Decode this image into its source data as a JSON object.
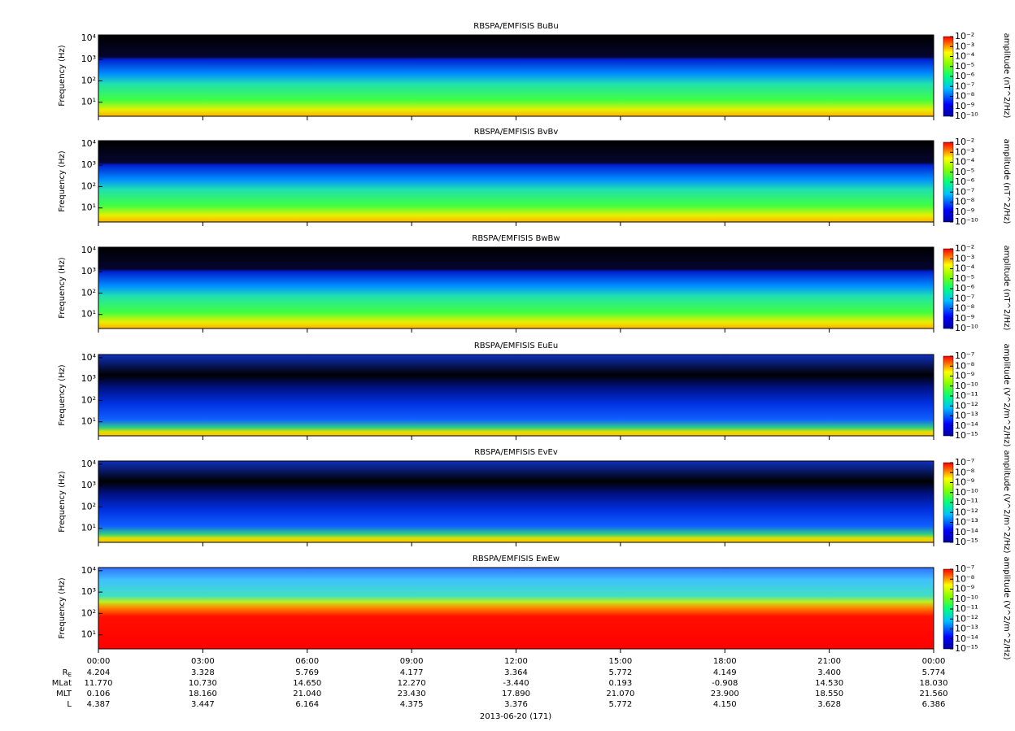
{
  "chart_data": [
    {
      "type": "spectrogram",
      "title": "RBSPA/EMFISIS  BuBu",
      "ylabel": "Frequency (Hz)",
      "ylog": true,
      "ylim": [
        2.2,
        14000
      ],
      "yticks": [
        {
          "value": 10,
          "label": "10¹"
        },
        {
          "value": 100,
          "label": "10²"
        },
        {
          "value": 1000,
          "label": "10³"
        },
        {
          "value": 10000,
          "label": "10⁴"
        }
      ],
      "zlabel": "amplitude (nT^2/Hz)",
      "zlim": [
        1e-10,
        0.01
      ],
      "zticks": [
        {
          "value": 0.01,
          "label": "10⁻²"
        },
        {
          "value": 0.001,
          "label": "10⁻³"
        },
        {
          "value": 0.0001,
          "label": "10⁻⁴"
        },
        {
          "value": 1e-05,
          "label": "10⁻⁵"
        },
        {
          "value": 1e-06,
          "label": "10⁻⁶"
        },
        {
          "value": 1e-07,
          "label": "10⁻⁷"
        },
        {
          "value": 1e-08,
          "label": "10⁻⁸"
        },
        {
          "value": 1e-09,
          "label": "10⁻⁹"
        },
        {
          "value": 1e-10,
          "label": "10⁻¹⁰"
        }
      ]
    },
    {
      "type": "spectrogram",
      "title": "RBSPA/EMFISIS  BvBv",
      "ylabel": "Frequency (Hz)",
      "ylog": true,
      "ylim": [
        2.2,
        14000
      ],
      "yticks": [
        {
          "value": 10,
          "label": "10¹"
        },
        {
          "value": 100,
          "label": "10²"
        },
        {
          "value": 1000,
          "label": "10³"
        },
        {
          "value": 10000,
          "label": "10⁴"
        }
      ],
      "zlabel": "amplitude (nT^2/Hz)",
      "zlim": [
        1e-10,
        0.01
      ],
      "zticks": [
        {
          "value": 0.01,
          "label": "10⁻²"
        },
        {
          "value": 0.001,
          "label": "10⁻³"
        },
        {
          "value": 0.0001,
          "label": "10⁻⁴"
        },
        {
          "value": 1e-05,
          "label": "10⁻⁵"
        },
        {
          "value": 1e-06,
          "label": "10⁻⁶"
        },
        {
          "value": 1e-07,
          "label": "10⁻⁷"
        },
        {
          "value": 1e-08,
          "label": "10⁻⁸"
        },
        {
          "value": 1e-09,
          "label": "10⁻⁹"
        },
        {
          "value": 1e-10,
          "label": "10⁻¹⁰"
        }
      ]
    },
    {
      "type": "spectrogram",
      "title": "RBSPA/EMFISIS  BwBw",
      "ylabel": "Frequency (Hz)",
      "ylog": true,
      "ylim": [
        2.2,
        14000
      ],
      "yticks": [
        {
          "value": 10,
          "label": "10¹"
        },
        {
          "value": 100,
          "label": "10²"
        },
        {
          "value": 1000,
          "label": "10³"
        },
        {
          "value": 10000,
          "label": "10⁴"
        }
      ],
      "zlabel": "amplitude (nT^2/Hz)",
      "zlim": [
        1e-10,
        0.01
      ],
      "zticks": [
        {
          "value": 0.01,
          "label": "10⁻²"
        },
        {
          "value": 0.001,
          "label": "10⁻³"
        },
        {
          "value": 0.0001,
          "label": "10⁻⁴"
        },
        {
          "value": 1e-05,
          "label": "10⁻⁵"
        },
        {
          "value": 1e-06,
          "label": "10⁻⁶"
        },
        {
          "value": 1e-07,
          "label": "10⁻⁷"
        },
        {
          "value": 1e-08,
          "label": "10⁻⁸"
        },
        {
          "value": 1e-09,
          "label": "10⁻⁹"
        },
        {
          "value": 1e-10,
          "label": "10⁻¹⁰"
        }
      ]
    },
    {
      "type": "spectrogram",
      "title": "RBSPA/EMFISIS  EuEu",
      "ylabel": "Frequency (Hz)",
      "ylog": true,
      "ylim": [
        2.2,
        14000
      ],
      "yticks": [
        {
          "value": 10,
          "label": "10¹"
        },
        {
          "value": 100,
          "label": "10²"
        },
        {
          "value": 1000,
          "label": "10³"
        },
        {
          "value": 10000,
          "label": "10⁴"
        }
      ],
      "zlabel": "amplitude (V^2/m^2/Hz)",
      "zlim": [
        1e-15,
        1e-07
      ],
      "zticks": [
        {
          "value": 1e-07,
          "label": "10⁻⁷"
        },
        {
          "value": 1e-08,
          "label": "10⁻⁸"
        },
        {
          "value": 1e-09,
          "label": "10⁻⁹"
        },
        {
          "value": 1e-10,
          "label": "10⁻¹⁰"
        },
        {
          "value": 1e-11,
          "label": "10⁻¹¹"
        },
        {
          "value": 1e-12,
          "label": "10⁻¹²"
        },
        {
          "value": 1e-13,
          "label": "10⁻¹³"
        },
        {
          "value": 1e-14,
          "label": "10⁻¹⁴"
        },
        {
          "value": 1e-15,
          "label": "10⁻¹⁵"
        }
      ]
    },
    {
      "type": "spectrogram",
      "title": "RBSPA/EMFISIS  EvEv",
      "ylabel": "Frequency (Hz)",
      "ylog": true,
      "ylim": [
        2.2,
        14000
      ],
      "yticks": [
        {
          "value": 10,
          "label": "10¹"
        },
        {
          "value": 100,
          "label": "10²"
        },
        {
          "value": 1000,
          "label": "10³"
        },
        {
          "value": 10000,
          "label": "10⁴"
        }
      ],
      "zlabel": "amplitude (V^2/m^2/Hz)",
      "zlim": [
        1e-15,
        1e-07
      ],
      "zticks": [
        {
          "value": 1e-07,
          "label": "10⁻⁷"
        },
        {
          "value": 1e-08,
          "label": "10⁻⁸"
        },
        {
          "value": 1e-09,
          "label": "10⁻⁹"
        },
        {
          "value": 1e-10,
          "label": "10⁻¹⁰"
        },
        {
          "value": 1e-11,
          "label": "10⁻¹¹"
        },
        {
          "value": 1e-12,
          "label": "10⁻¹²"
        },
        {
          "value": 1e-13,
          "label": "10⁻¹³"
        },
        {
          "value": 1e-14,
          "label": "10⁻¹⁴"
        },
        {
          "value": 1e-15,
          "label": "10⁻¹⁵"
        }
      ]
    },
    {
      "type": "spectrogram",
      "title": "RBSPA/EMFISIS  EwEw",
      "ylabel": "Frequency (Hz)",
      "ylog": true,
      "ylim": [
        2.2,
        14000
      ],
      "yticks": [
        {
          "value": 10,
          "label": "10¹"
        },
        {
          "value": 100,
          "label": "10²"
        },
        {
          "value": 1000,
          "label": "10³"
        },
        {
          "value": 10000,
          "label": "10⁴"
        }
      ],
      "zlabel": "amplitude (V^2/m^2/Hz)",
      "zlim": [
        1e-15,
        1e-07
      ],
      "zticks": [
        {
          "value": 1e-07,
          "label": "10⁻⁷"
        },
        {
          "value": 1e-08,
          "label": "10⁻⁸"
        },
        {
          "value": 1e-09,
          "label": "10⁻⁹"
        },
        {
          "value": 1e-10,
          "label": "10⁻¹⁰"
        },
        {
          "value": 1e-11,
          "label": "10⁻¹¹"
        },
        {
          "value": 1e-12,
          "label": "10⁻¹²"
        },
        {
          "value": 1e-13,
          "label": "10⁻¹³"
        },
        {
          "value": 1e-14,
          "label": "10⁻¹⁴"
        },
        {
          "value": 1e-15,
          "label": "10⁻¹⁵"
        }
      ]
    }
  ],
  "xaxis": {
    "xlim": [
      0,
      24
    ],
    "xticks": [
      {
        "value": 0,
        "label": "00:00"
      },
      {
        "value": 3,
        "label": "03:00"
      },
      {
        "value": 6,
        "label": "06:00"
      },
      {
        "value": 9,
        "label": "09:00"
      },
      {
        "value": 12,
        "label": "12:00"
      },
      {
        "value": 15,
        "label": "15:00"
      },
      {
        "value": 18,
        "label": "18:00"
      },
      {
        "value": 21,
        "label": "21:00"
      },
      {
        "value": 24,
        "label": "00:00"
      }
    ],
    "date": "2013-06-20 (171)"
  },
  "ephemeris": [
    {
      "label": "R",
      "sub": "E",
      "values": [
        "4.204",
        "3.328",
        "5.769",
        "4.177",
        "3.364",
        "5.772",
        "4.149",
        "3.400",
        "5.774"
      ]
    },
    {
      "label": "MLat",
      "values": [
        "11.770",
        "10.730",
        "14.650",
        "12.270",
        "-3.440",
        "0.193",
        "-0.908",
        "14.530",
        "18.030"
      ]
    },
    {
      "label": "MLT",
      "values": [
        "0.106",
        "18.160",
        "21.040",
        "23.430",
        "17.890",
        "21.070",
        "23.900",
        "18.550",
        "21.560"
      ]
    },
    {
      "label": "L",
      "values": [
        "4.387",
        "3.447",
        "6.164",
        "4.375",
        "3.376",
        "5.772",
        "4.150",
        "3.628",
        "6.386"
      ]
    }
  ]
}
